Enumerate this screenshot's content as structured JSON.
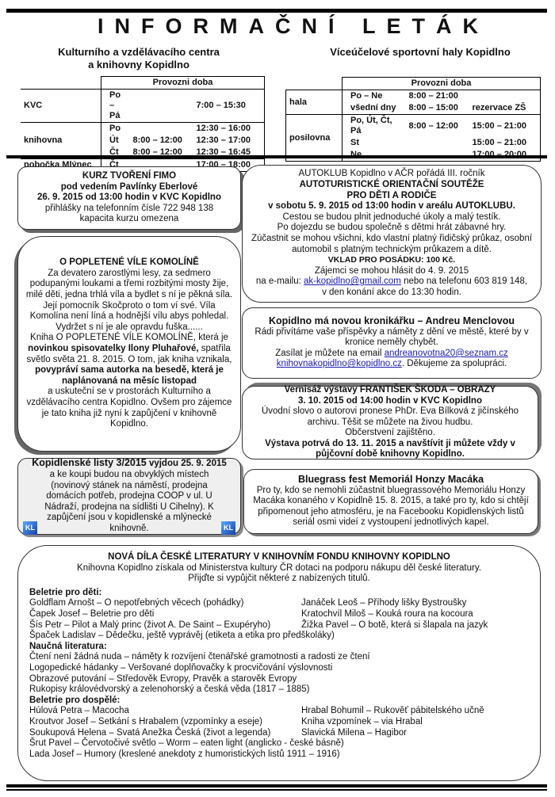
{
  "title": "INFORMAČNÍ LETÁK",
  "left_heading": [
    "Kulturního a vzdělávacího centra",
    "a knihovny Kopidlno"
  ],
  "right_heading": "Víceúčelové sportovní haly Kopidlno",
  "left_table": {
    "header": "Provozni doba",
    "rows": [
      {
        "place": "KVC",
        "lines": [
          [
            "Po – Pá",
            "",
            "7:00 – 15:30"
          ]
        ]
      },
      {
        "place": "knihovna",
        "lines": [
          [
            "Po",
            "",
            "12:30 – 16:00"
          ],
          [
            "Út",
            "8:00 – 12:00",
            "12:30 – 17:00"
          ],
          [
            "Čt",
            "8:00 – 12:00",
            "12:30 – 16:45"
          ]
        ]
      },
      {
        "place": "pobočka Mlýnec",
        "lines": [
          [
            "Čt",
            "",
            "17:00 – 18:00"
          ]
        ]
      }
    ]
  },
  "right_table": {
    "header": "Provozni doba",
    "rows": [
      {
        "place": "hala",
        "lines": [
          [
            "Po – Ne",
            "8:00 – 21:00",
            ""
          ],
          [
            "všední dny",
            "8:00 – 15:00",
            "rezervace ZŠ"
          ]
        ]
      },
      {
        "place": "posilovna",
        "lines": [
          [
            "Po, Út, Čt, Pá",
            "8:00 – 12:00",
            "15:00 – 21:00"
          ],
          [
            "St",
            "",
            "15:00 – 21:00"
          ],
          [
            "Ne",
            "",
            "17:00 – 20:00"
          ]
        ]
      }
    ]
  },
  "fimo": {
    "l1": "KURZ TVOŘENÍ FIMO",
    "l2": "pod vedením Pavlínky Eberlové",
    "l3": "26. 9. 2015 od 13:00 hodin v KVC Kopidlno",
    "l4": "přihlášky na telefonním čísle 722 948 138",
    "l5": "kapacita kurzu omezena"
  },
  "komoline": {
    "title": "O POPLETENÉ VÍLE KOMOLÍNĚ",
    "p1": "Za devatero zarostlými lesy, za sedmero podupanými loukami a třemi rozbitými mosty žije, milé děti, jedna trhlá víla a bydlet s ní je pěkná síla. Její pomocník Skočproto o tom ví své. Víla Komolína není líná a hodnější vílu abys pohledal. Vydržet s ní je ale opravdu fuška......",
    "p2a": "Kniha O POPLETENÉ VÍLE KOMOLÍNĚ, která je ",
    "p2b": "novinkou spisovatelky Ilony Pluhařové,",
    "p2c": " spatřila světlo světa 21. 8. 2015. O tom, jak kniha vznikala, ",
    "p2d": "povypráví sama autorka na besedě, která je naplánovaná na měsíc listopad",
    "p3": "a uskuteční se v prostorách Kulturního a vzdělávacího centra Kopidlno. Ovšem pro zájemce je tato kniha již nyní k zapůjčení v knihovně Kopidlno."
  },
  "listy": {
    "bold": "Kopidlenské listy 3/2015",
    "date": " vyjdou 25. 9. 2015",
    "text": "a ke koupi budou na obvyklých místech (novinový stánek na náměstí, prodejna domácích potřeb, prodejna COOP v ul. U Nádraží, prodejna na sídlišti U Cihelny). K zapůjčení jsou v kopidlenské a mlýnecké knihovně.",
    "logo": "KL"
  },
  "autoklub": {
    "l1": "AUTOKLUB Kopidlno v AČR pořádá III. ročník",
    "l2": "AUTOTURISTICKÉ ORIENTAČNÍ SOUTĚŽE",
    "l3": "PRO DĚTI A RODIČE",
    "l4": "v sobotu 5. 9. 2015 od 13:00 hodin v areálu AUTOKLUBU.",
    "l5": "Cestou se budou plnit jednoduché úkoly a malý testík.",
    "l6": "Po dojezdu se budou společně s dětmi hrát zábavné hry.",
    "l7": "Zúčastnit se mohou všichni, kdo vlastní platný řidičský průkaz, osobní automobil s platným technickým průkazem a dítě.",
    "l8": "VKLAD PRO POSÁDKU: 100 Kč.",
    "l9": "Zájemci se mohou hlásit do 4. 9. 2015",
    "l10a": "na e-mailu: ",
    "email": "ak-kopidlno@gmail.com",
    "l10b": " nebo na telefonu 603 819 148,",
    "l11": "v den konání akce do 13:30 hodin."
  },
  "kronikarka": {
    "title": "Kopidlno má novou kronikářku – Andreu Menclovou",
    "l1": "Rádi přivítáme vaše příspěvky a náměty z dění ve městě, které by v kronice neměly chybět.",
    "l2": "Zasílat je můžete na email ",
    "email1": "andreanovotna20@seznam.cz",
    "email2": "knihovnakopidlno@kopidlno.cz",
    "l3": ". Děkujeme za spolupráci."
  },
  "vernisaz": {
    "l1": "Vernisáž výstavy FRANTIŠEK ŠKODA – OBRAZY",
    "l2": "3. 10. 2015 od 14:00 hodin v KVC Kopidlno",
    "l3": "Úvodní slovo o autorovi pronese PhDr. Eva Bílková z jičínského archivu. Těšit se můžete na živou hudbu.",
    "l4": "Občerstvení zajištěno.",
    "l5": "Výstava potrvá do 13. 11. 2015 a navštívit ji můžete vždy v půjčovní době knihovny Kopidlno."
  },
  "bluegrass": {
    "title": "Bluegrass fest Memoriál Honzy Macáka",
    "text": "Pro ty, kdo se nemohli zúčastnit bluegrassového Memoriálu Honzy Macáka konaného v Kopidlně  15. 8. 2015, a také pro ty, kdo si chtějí připomenout jeho atmosféru, je na Facebooku Kopidlenských listů seriál osmi videí z vystoupení jednotlivých kapel."
  },
  "literatura": {
    "title": "NOVÁ DÍLA ČESKÉ LITERATURY V KNIHOVNÍM FONDU KNIHOVNY KOPIDLNO",
    "intro1": "Knihovna Kopidlno získala od Ministerstva kultury ČR dotaci na podporu nákupu děl české literatury.",
    "intro2": "Přijďte si vypůjčit některé z nabízených titulů.",
    "sections": [
      {
        "heading": "Beletrie pro děti:",
        "rows": [
          [
            "Goldflam Arnošt – O nepotřebných věcech (pohádky)",
            "Janáček Leoš – Příhody lišky Bystroušky"
          ],
          [
            "Čapek Josef – Beletrie pro děti",
            "Kratochvíl Miloš – Kouká roura na kocoura"
          ],
          [
            "Šís Petr – Pilot a Malý princ (život A. De Saint – Exupéryho)",
            "Žižka Pavel – O botě, která si šlapala na jazyk"
          ],
          [
            "Špaček Ladislav – Dědečku, ještě vyprávěj (etiketa a etika pro předškoláky)",
            ""
          ]
        ]
      },
      {
        "heading": "Naučná literatura:",
        "rows": [
          [
            "Čtení není žádná nuda – náměty k rozvíjení čtenářské gramotnosti a radosti ze čtení",
            ""
          ],
          [
            "Logopedické hádanky – Veršované doplňovačky k procvičování výslovnosti",
            ""
          ],
          [
            "Obrazové putování – Středověk Evropy, Pravěk a starověk Evropy",
            ""
          ],
          [
            "Rukopisy královédvorský a zelenohorský a česká věda (1817 – 1885)",
            ""
          ]
        ]
      },
      {
        "heading": "Beletrie pro dospělé:",
        "rows": [
          [
            "Húlová Petra – Macocha",
            "Hrabal Bohumil – Rukověť pábitelského učně"
          ],
          [
            "Kroutvor Josef – Setkání s Hrabalem (vzpomínky a eseje)",
            "Kniha vzpomínek – via Hrabal"
          ],
          [
            "Soukupová Helena – Svatá Anežka Česká (život a legenda)",
            "Slavická Milena – Hagibor"
          ],
          [
            "Šrut Pavel – Červotočivé světlo – Worm – eaten light (anglicko - české básně)",
            ""
          ],
          [
            "Lada Josef – Humory (kreslené anekdoty z humoristických listů 1911 – 1916)",
            ""
          ]
        ]
      }
    ]
  }
}
